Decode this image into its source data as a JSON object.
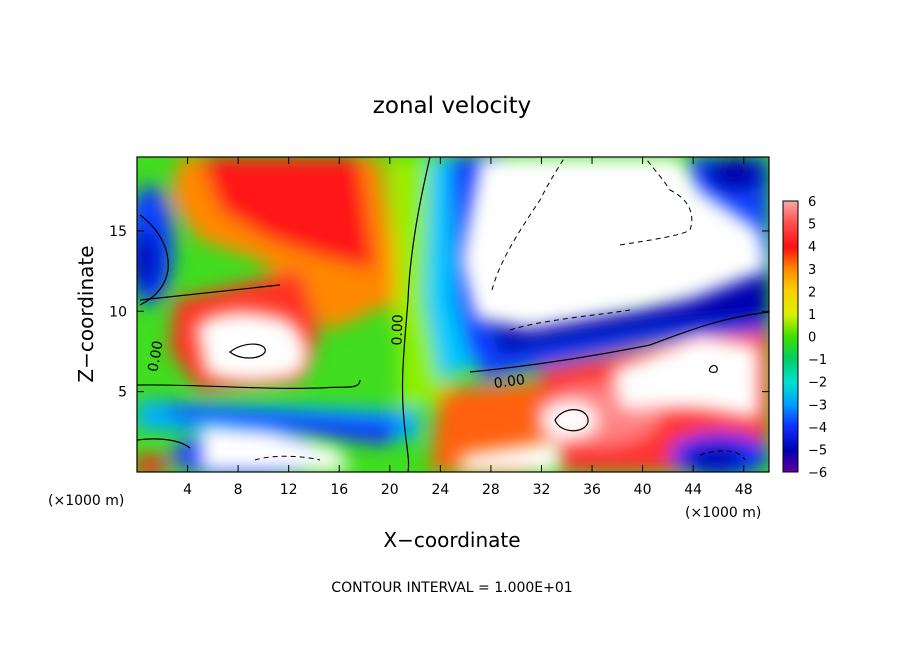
{
  "chart_data": {
    "type": "heatmap",
    "title": "zonal velocity",
    "xlabel": "X−coordinate",
    "ylabel": "Z−coordinate",
    "x_unit_left": "(×1000 m)",
    "x_unit_right": "(×1000 m)",
    "xlim": [
      0,
      50
    ],
    "ylim": [
      0,
      19.6
    ],
    "x_ticks": [
      4,
      8,
      12,
      16,
      20,
      24,
      28,
      32,
      36,
      40,
      44,
      48
    ],
    "y_ticks": [
      5,
      10,
      15
    ],
    "colorbar_ticks": [
      6,
      5,
      4,
      3,
      2,
      1,
      0,
      -1,
      -2,
      -3,
      -4,
      -5,
      -6
    ],
    "colorbar_range": [
      -6,
      6
    ],
    "contour_labels": [
      {
        "text": "0.00",
        "x": 21.0,
        "y": 8.5
      },
      {
        "text": "0.00",
        "x": 29.5,
        "y": 5.7
      },
      {
        "text": "0.00",
        "x": 1.8,
        "y": 7.2
      }
    ],
    "contour_interval_text": "CONTOUR INTERVAL = 1.000E+01"
  }
}
